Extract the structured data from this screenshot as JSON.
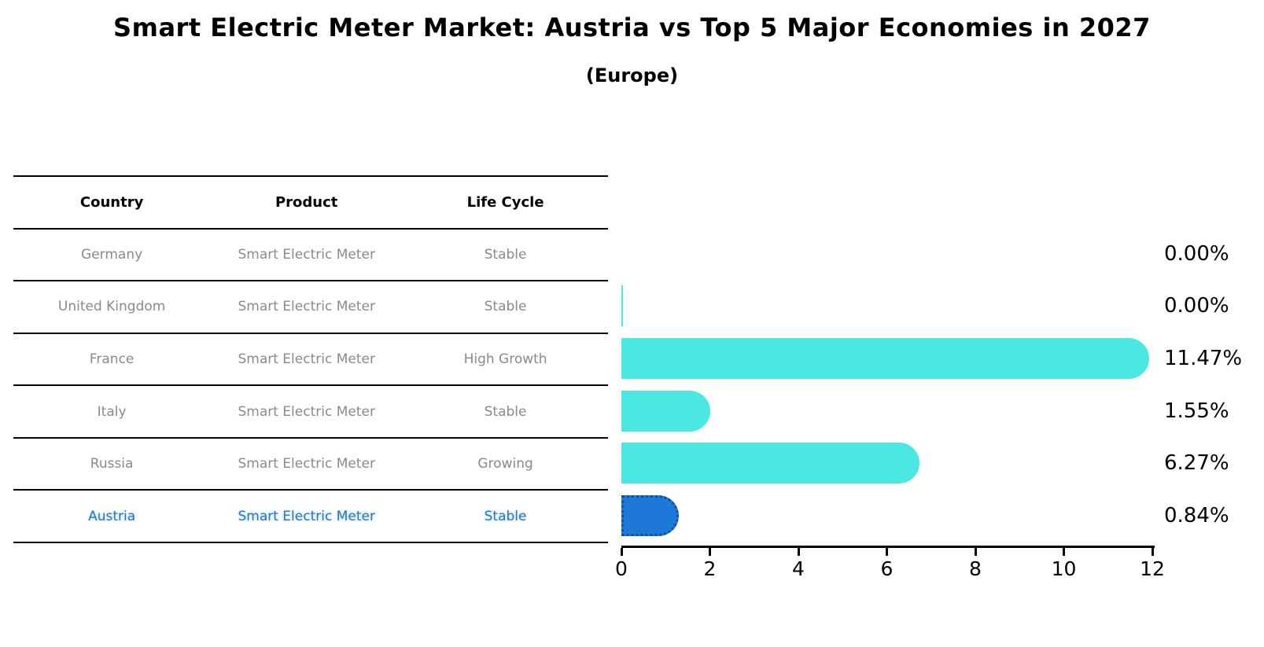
{
  "title": "Smart Electric Meter Market: Austria vs Top 5 Major Economies in 2027",
  "subtitle": "(Europe)",
  "colors": {
    "bar_cyan": "#4be8e3",
    "bar_highlight_blue": "#1e78d7",
    "bar_highlight_border": "#0d4fa0",
    "table_body_text": "#8a8a8a",
    "highlight_row_text": "#2878be",
    "axis_and_labels": "#000000"
  },
  "table": {
    "headers": [
      "Country",
      "Product",
      "Life Cycle"
    ],
    "rows": [
      {
        "country": "Germany",
        "product": "Smart Electric Meter",
        "life_cycle": "Stable",
        "highlight": false
      },
      {
        "country": "United Kingdom",
        "product": "Smart Electric Meter",
        "life_cycle": "Stable",
        "highlight": false
      },
      {
        "country": "France",
        "product": "Smart Electric Meter",
        "life_cycle": "High Growth",
        "highlight": false
      },
      {
        "country": "Italy",
        "product": "Smart Electric Meter",
        "life_cycle": "Stable",
        "highlight": false
      },
      {
        "country": "Russia",
        "product": "Smart Electric Meter",
        "life_cycle": "Growing",
        "highlight": false
      },
      {
        "country": "Austria",
        "product": "Smart Electric Meter",
        "life_cycle": "Stable",
        "highlight": true
      }
    ]
  },
  "chart_data": {
    "type": "bar",
    "orientation": "horizontal",
    "title": "Smart Electric Meter Market: Austria vs Top 5 Major Economies in 2027",
    "subtitle": "(Europe)",
    "categories": [
      "Germany",
      "United Kingdom",
      "France",
      "Italy",
      "Russia",
      "Austria"
    ],
    "values": [
      0.0,
      0.0,
      11.47,
      1.55,
      6.27,
      0.84
    ],
    "value_labels": [
      "0.00%",
      "0.00%",
      "11.47%",
      "1.55%",
      "6.27%",
      "0.84%"
    ],
    "xlim": [
      0,
      12
    ],
    "xticks": [
      0,
      2,
      4,
      6,
      8,
      10,
      12
    ],
    "grid": false,
    "legend": false,
    "highlight_index": 5,
    "bar_styles": [
      "none",
      "sliver",
      "normal",
      "normal",
      "normal",
      "highlight"
    ]
  }
}
